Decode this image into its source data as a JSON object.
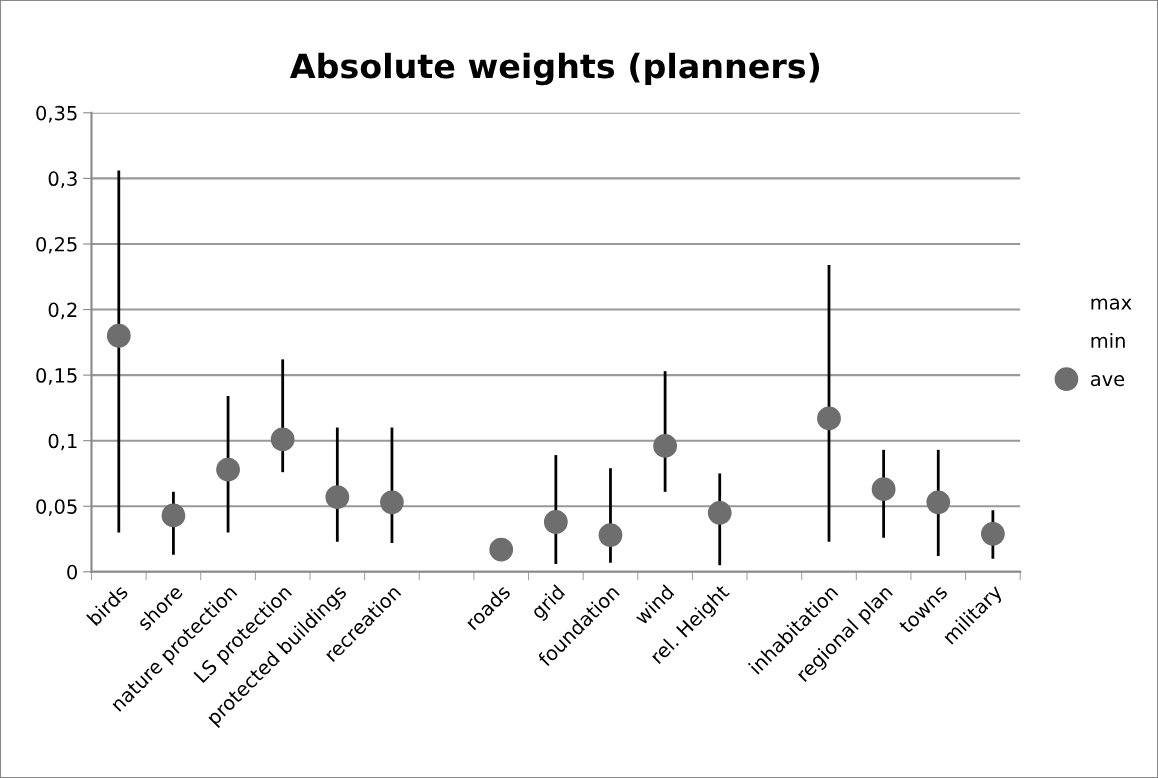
{
  "chart_data": {
    "type": "scatter",
    "title": "Absolute weights (planners)",
    "categories": [
      "birds",
      "shore",
      "nature protection",
      "LS protection",
      "protected buildings",
      "recreation",
      null,
      "roads",
      "grid",
      "foundation",
      "wind",
      "rel. Height",
      null,
      "inhabitation",
      "regional plan",
      "towns",
      "military"
    ],
    "series": [
      {
        "name": "ave",
        "color": "#6e6e6e",
        "values": [
          0.18,
          0.043,
          0.078,
          0.101,
          0.057,
          0.053,
          null,
          0.017,
          0.038,
          0.028,
          0.096,
          0.045,
          null,
          0.117,
          0.063,
          0.053,
          0.029
        ],
        "errors": [
          [
            0.03,
            0.306
          ],
          [
            0.013,
            0.061
          ],
          [
            0.03,
            0.134
          ],
          [
            0.076,
            0.162
          ],
          [
            0.023,
            0.11
          ],
          [
            0.022,
            0.11
          ],
          null,
          [
            0.017,
            0.024
          ],
          [
            0.006,
            0.089
          ],
          [
            0.007,
            0.079
          ],
          [
            0.061,
            0.153
          ],
          [
            0.005,
            0.075
          ],
          null,
          [
            0.023,
            0.234
          ],
          [
            0.026,
            0.093
          ],
          [
            0.012,
            0.093
          ],
          [
            0.01,
            0.047
          ]
        ]
      }
    ],
    "annotations": [
      "max",
      "min"
    ],
    "marker": "circle",
    "ylim": [
      0,
      0.35
    ],
    "yticks": [
      0,
      {
        "value": 0.05,
        "label": "0,05"
      },
      {
        "value": 0.1,
        "label": "0,1"
      },
      {
        "value": 0.15,
        "label": "0,15"
      },
      {
        "value": 0.2,
        "label": "0,2"
      },
      {
        "value": 0.25,
        "label": "0,25"
      },
      {
        "value": 0.3,
        "label": "0,3"
      },
      {
        "value": 0.35,
        "label": "0,35"
      }
    ],
    "grid": "y",
    "legend": "right"
  }
}
